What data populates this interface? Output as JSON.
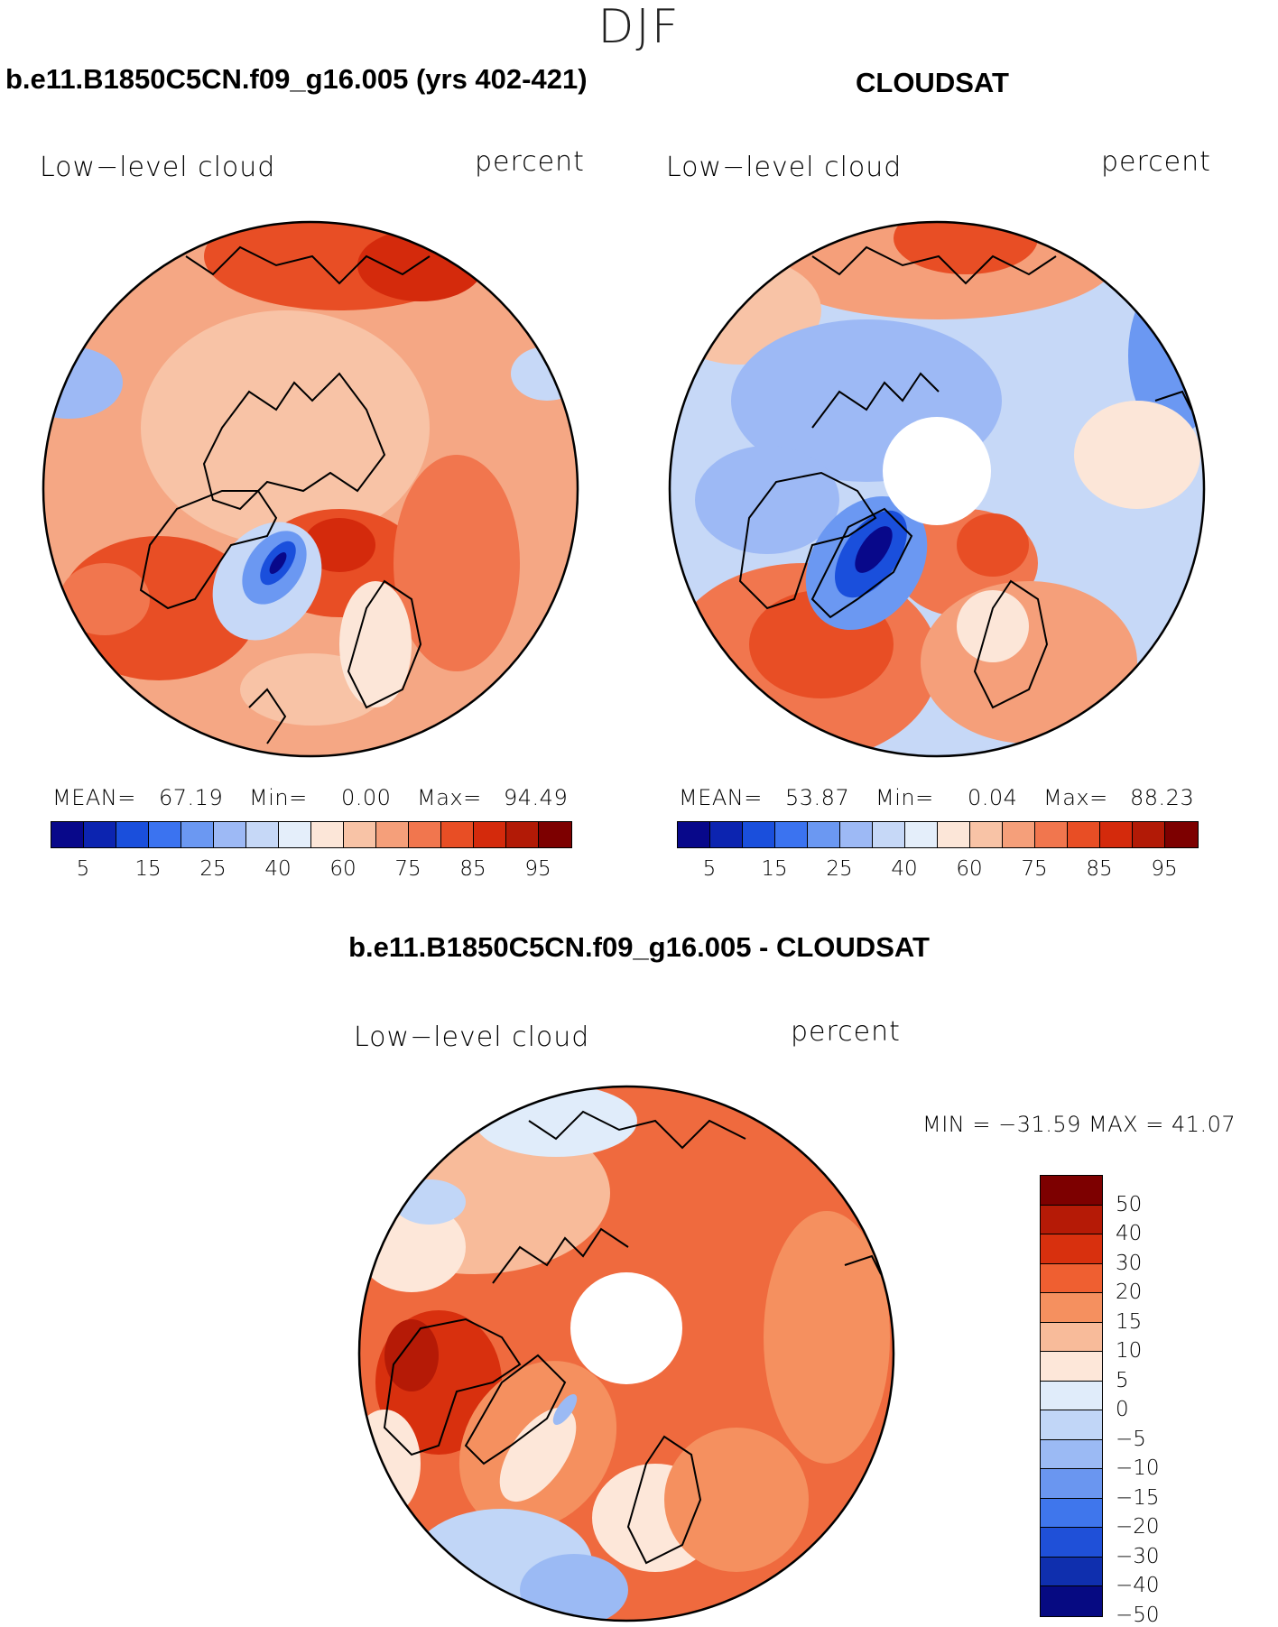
{
  "figure_title": "DJF",
  "panels": [
    {
      "id": "model",
      "title": "b.e11.B1850C5CN.f09_g16.005 (yrs 402-421)",
      "variable": "Low−level cloud",
      "units": "percent",
      "mean_label": "MEAN=",
      "mean": "67.19",
      "min_label": "Min=",
      "min": "0.00",
      "max_label": "Max=",
      "max": "94.49"
    },
    {
      "id": "obs",
      "title": "CLOUDSAT",
      "variable": "Low−level cloud",
      "units": "percent",
      "mean_label": "MEAN=",
      "mean": "53.87",
      "min_label": "Min=",
      "min": "0.04",
      "max_label": "Max=",
      "max": "88.23"
    },
    {
      "id": "diff",
      "title": "b.e11.B1850C5CN.f09_g16.005 - CLOUDSAT",
      "variable": "Low−level cloud",
      "units": "percent",
      "minmax_text": "MIN = −31.59 MAX =   41.07"
    }
  ],
  "abs_colorbar": {
    "colors": [
      "#08088a",
      "#0c24b0",
      "#1a4fdc",
      "#3b73f0",
      "#6b98f2",
      "#9db9f5",
      "#c6d8f7",
      "#e4eefa",
      "#fce6d8",
      "#f8c3a6",
      "#f59f7a",
      "#f1764e",
      "#e84e25",
      "#d42a0c",
      "#b21a06",
      "#7d0000"
    ],
    "tick_labels": [
      "5",
      "15",
      "25",
      "40",
      "60",
      "75",
      "85",
      "95"
    ]
  },
  "diff_colorbar": {
    "colors": [
      "#7d0000",
      "#b51a06",
      "#d8300e",
      "#ef5f31",
      "#f5905f",
      "#f8bb9a",
      "#fde7d9",
      "#e0ecfa",
      "#c1d6f7",
      "#9bbaf4",
      "#6a96f0",
      "#3f76ec",
      "#1f50d8",
      "#0f2fae",
      "#060a82"
    ],
    "tick_labels": [
      "50",
      "40",
      "30",
      "20",
      "15",
      "10",
      "5",
      "0",
      "−5",
      "−10",
      "−15",
      "−20",
      "−30",
      "−40",
      "−50"
    ]
  },
  "map_fill": {
    "model_base": "#f5a784",
    "obs_base": "#c6d8f7",
    "diff_base": "#ef6a3e"
  }
}
